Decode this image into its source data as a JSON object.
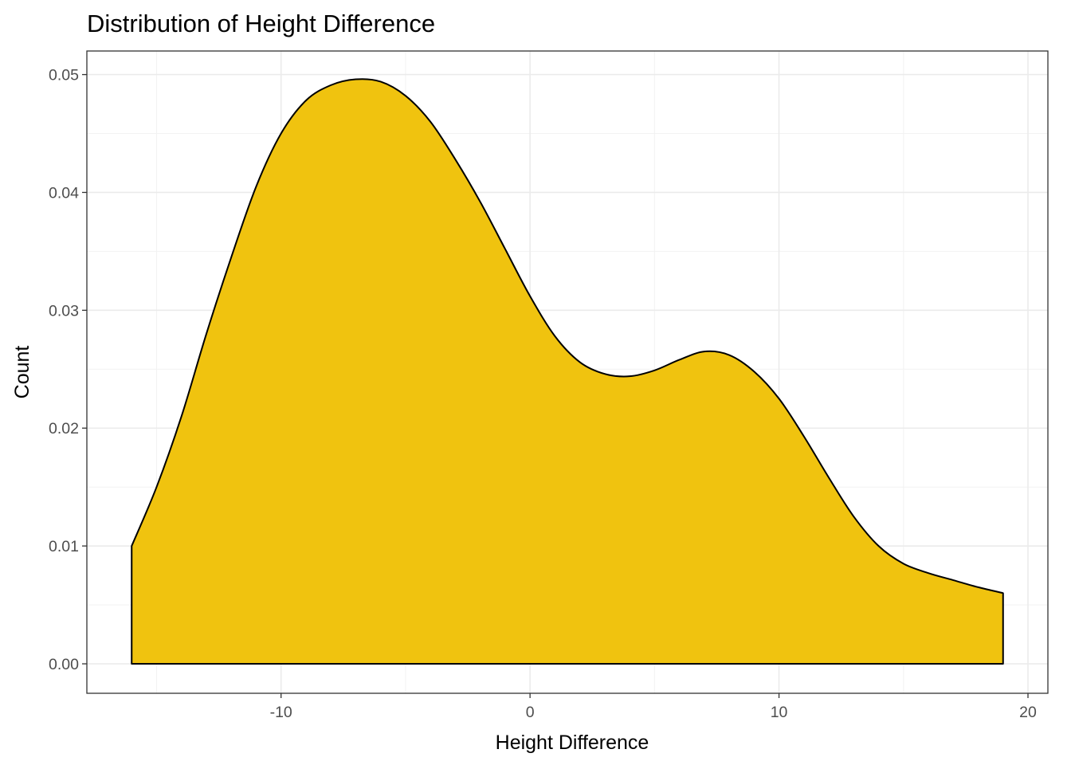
{
  "chart_data": {
    "type": "area",
    "title": "Distribution of  Height Difference",
    "xlabel": "Height Difference",
    "ylabel": "Count",
    "xlim": [
      -17.8,
      20.8
    ],
    "ylim": [
      -0.0025,
      0.052
    ],
    "x_ticks": [
      -10,
      0,
      10,
      20
    ],
    "x_tick_labels": [
      "-10",
      "0",
      "10",
      "20"
    ],
    "y_ticks": [
      0,
      0.01,
      0.02,
      0.03,
      0.04,
      0.05
    ],
    "y_tick_labels": [
      "0.00",
      "0.01",
      "0.02",
      "0.03",
      "0.04",
      "0.05"
    ],
    "grid": true,
    "series": [
      {
        "fill": "#F0C30F",
        "outline": "#000000",
        "x": [
          -16,
          -15,
          -14,
          -13,
          -12,
          -11,
          -10,
          -9,
          -8,
          -7,
          -6,
          -5,
          -4,
          -3,
          -2,
          -1,
          0,
          1,
          2,
          3,
          4,
          5,
          6,
          7,
          8,
          9,
          10,
          11,
          12,
          13,
          14,
          15,
          16,
          17,
          18,
          19
        ],
        "y": [
          0.01,
          0.015,
          0.021,
          0.028,
          0.0345,
          0.0405,
          0.045,
          0.0478,
          0.0491,
          0.0496,
          0.0494,
          0.0482,
          0.046,
          0.0428,
          0.0392,
          0.0352,
          0.0312,
          0.0278,
          0.0256,
          0.0246,
          0.0244,
          0.0249,
          0.0258,
          0.0265,
          0.0262,
          0.0248,
          0.0225,
          0.0193,
          0.0158,
          0.0125,
          0.01,
          0.0085,
          0.0077,
          0.0071,
          0.0065,
          0.006
        ]
      }
    ]
  }
}
